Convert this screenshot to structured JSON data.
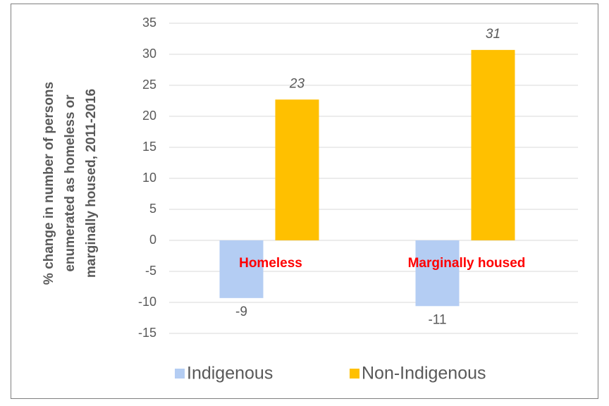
{
  "chart_data": {
    "type": "bar",
    "ylabel": [
      "% change in number of persons",
      "enumerated as homeless or",
      "marginally housed, 2011-2016"
    ],
    "categories": [
      "Homeless",
      "Marginally housed"
    ],
    "series": [
      {
        "name": "Indigenous",
        "color": "#b4cdf3",
        "values": [
          -9.3,
          -10.6
        ],
        "value_labels": [
          "-9",
          "-11"
        ]
      },
      {
        "name": "Non-Indigenous",
        "color": "#ffc000",
        "values": [
          22.7,
          30.7
        ],
        "value_labels": [
          "23",
          "31"
        ]
      }
    ],
    "ylim": [
      -15,
      35
    ],
    "yticks": [
      -15,
      -10,
      -5,
      0,
      5,
      10,
      15,
      20,
      25,
      30,
      35
    ],
    "grid": true,
    "legend": "bottom"
  }
}
